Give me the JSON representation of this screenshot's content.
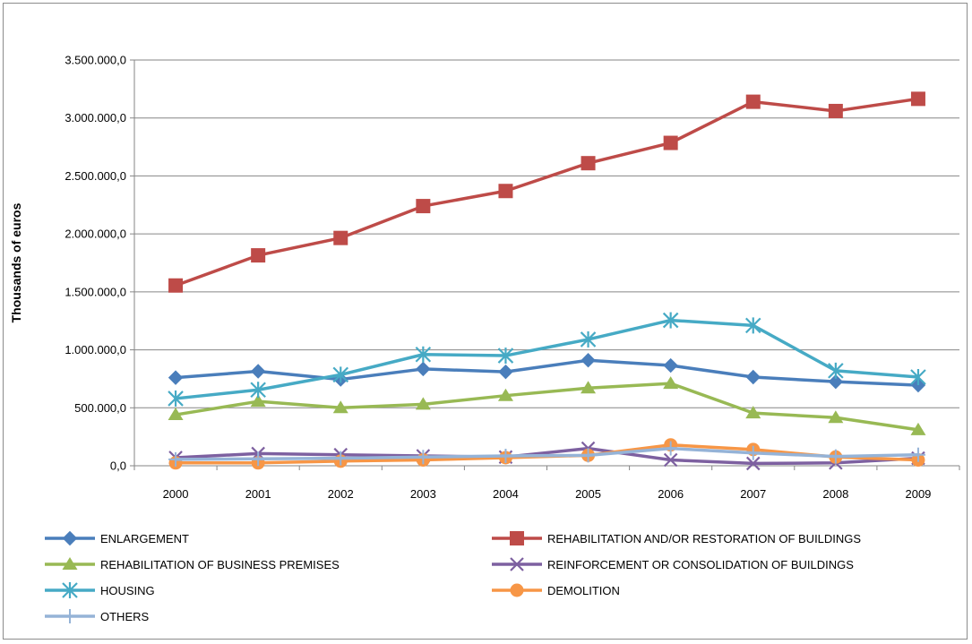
{
  "chart_data": {
    "type": "line",
    "title": "",
    "xlabel": "",
    "ylabel": "Thousands of euros",
    "ylim": [
      0,
      3500000
    ],
    "y_tick_values": [
      0,
      500000,
      1000000,
      1500000,
      2000000,
      2500000,
      3000000,
      3500000
    ],
    "y_tick_labels": [
      "0,0",
      "500.000,0",
      "1.000.000,0",
      "1.500.000,0",
      "2.000.000,0",
      "2.500.000,0",
      "3.000.000,0",
      "3.500.000,0"
    ],
    "grid": true,
    "legend_position": "bottom",
    "categories": [
      "2000",
      "2001",
      "2002",
      "2003",
      "2004",
      "2005",
      "2006",
      "2007",
      "2008",
      "2009"
    ],
    "series": [
      {
        "name": "ENLARGEMENT",
        "color": "#4a7ebb",
        "marker": "diamond",
        "values": [
          760000,
          815000,
          745000,
          835000,
          810000,
          910000,
          865000,
          765000,
          725000,
          695000
        ]
      },
      {
        "name": "REHABILITATION AND/OR RESTORATION OF BUILDINGS",
        "color": "#be4b48",
        "marker": "square",
        "values": [
          1555000,
          1815000,
          1965000,
          2240000,
          2370000,
          2610000,
          2785000,
          3140000,
          3060000,
          3165000
        ]
      },
      {
        "name": "REHABILITATION OF BUSINESS PREMISES",
        "color": "#98b954",
        "marker": "triangle",
        "values": [
          440000,
          555000,
          500000,
          530000,
          605000,
          670000,
          710000,
          455000,
          415000,
          310000
        ]
      },
      {
        "name": "REINFORCEMENT OR CONSOLIDATION OF BUILDINGS",
        "color": "#7d60a0",
        "marker": "x",
        "values": [
          70000,
          105000,
          95000,
          85000,
          75000,
          150000,
          50000,
          20000,
          25000,
          65000
        ]
      },
      {
        "name": "HOUSING",
        "color": "#46aac5",
        "marker": "asterisk",
        "values": [
          580000,
          655000,
          785000,
          960000,
          950000,
          1090000,
          1255000,
          1210000,
          820000,
          765000
        ]
      },
      {
        "name": "DEMOLITION",
        "color": "#f79646",
        "marker": "circle",
        "values": [
          25000,
          25000,
          40000,
          50000,
          70000,
          90000,
          180000,
          140000,
          75000,
          50000
        ]
      },
      {
        "name": "OTHERS",
        "color": "#95b3d7",
        "marker": "plus",
        "values": [
          55000,
          60000,
          65000,
          75000,
          85000,
          90000,
          150000,
          110000,
          80000,
          95000
        ]
      }
    ]
  }
}
